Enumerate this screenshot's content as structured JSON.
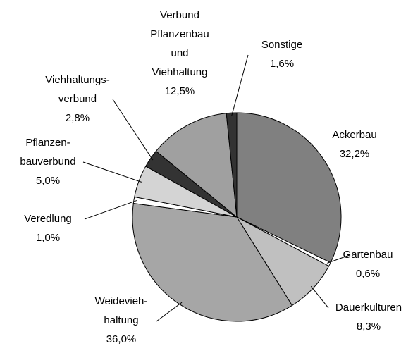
{
  "chart_data": {
    "type": "pie",
    "categories": [
      "Ackerbau",
      "Gartenbau",
      "Dauerkulturen",
      "Weidevieh-\nhaltung",
      "Veredlung",
      "Pflanzen-\nbauverbund",
      "Viehhaltungs-\nverbund",
      "Verbund\nPflanzenbau\nund\nViehhaltung",
      "Sonstige"
    ],
    "values": [
      32.2,
      0.6,
      8.3,
      36.0,
      1.0,
      5.0,
      2.8,
      12.5,
      1.6
    ],
    "value_labels": [
      "32,2%",
      "0,6%",
      "8,3%",
      "36,0%",
      "1,0%",
      "5,0%",
      "2,8%",
      "12,5%",
      "1,6%"
    ],
    "colors": [
      "#808080",
      "#ffffff",
      "#c0c0c0",
      "#a6a6a6",
      "#ffffff",
      "#d4d4d4",
      "#333333",
      "#a0a0a0",
      "#333333"
    ]
  }
}
